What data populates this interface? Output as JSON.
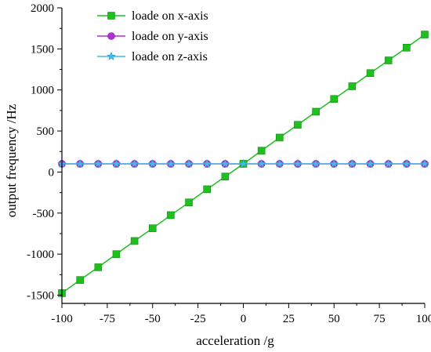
{
  "chart_data": {
    "type": "line",
    "xlabel": "acceleration /g",
    "ylabel": "output frequency /Hz",
    "xlim": [
      -100,
      100
    ],
    "ylim": [
      -1600,
      2000
    ],
    "xticks": [
      "-100",
      "-75",
      "-50",
      "-25",
      "0",
      "25",
      "50",
      "75",
      "100"
    ],
    "yticks": [
      "2000",
      "1500",
      "1000",
      "500",
      "0",
      "-500",
      "-1000",
      "-1500"
    ],
    "grid": false,
    "legend_position": "top-left",
    "x": [
      -100,
      -90,
      -80,
      -70,
      -60,
      -50,
      -40,
      -30,
      -20,
      -10,
      0,
      10,
      20,
      30,
      40,
      50,
      60,
      70,
      80,
      90,
      100
    ],
    "series": [
      {
        "name": "loade on x-axis",
        "color": "#1fbf1f",
        "marker": "square",
        "values": [
          -1475,
          -1315,
          -1160,
          -1000,
          -840,
          -685,
          -525,
          -370,
          -210,
          -55,
          100,
          260,
          420,
          575,
          735,
          890,
          1045,
          1205,
          1360,
          1515,
          1675
        ]
      },
      {
        "name": "loade on y-axis",
        "color": "#b030d0",
        "marker": "circle",
        "values": [
          100,
          100,
          100,
          100,
          100,
          100,
          100,
          100,
          100,
          100,
          100,
          100,
          100,
          100,
          100,
          100,
          100,
          100,
          100,
          100,
          100
        ]
      },
      {
        "name": "loade on z-axis",
        "color": "#45b8e8",
        "marker": "star",
        "values": [
          100,
          100,
          100,
          100,
          100,
          100,
          100,
          100,
          100,
          100,
          100,
          100,
          100,
          100,
          100,
          100,
          100,
          100,
          100,
          100,
          100
        ]
      }
    ]
  }
}
